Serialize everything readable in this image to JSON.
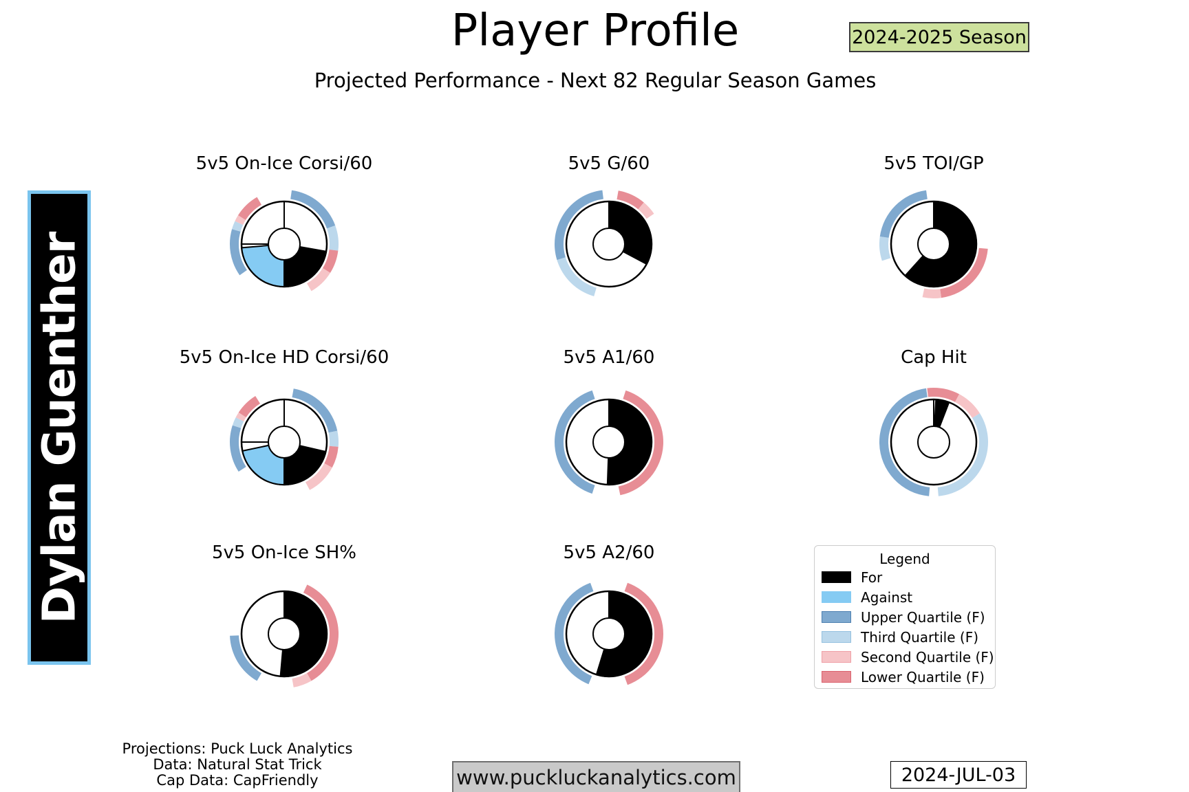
{
  "header": {
    "title": "Player Profile",
    "season_badge": "2024-2025 Season",
    "subtitle": "Projected Performance - Next 82 Regular Season Games"
  },
  "player": {
    "name": "Dylan Guenther"
  },
  "colors": {
    "for": "#000000",
    "against": "#85cbf3",
    "upper_q": "#7fa9cf",
    "upper_q_border": "#4c7fb0",
    "third_q": "#bcd8ec",
    "third_q_border": "#94c0df",
    "second_q": "#f6c4c7",
    "second_q_border": "#efa0a6",
    "lower_q": "#e78d95",
    "lower_q_border": "#da626d",
    "season_badge_bg": "#cde19d",
    "website_box_bg": "#c9c9c9",
    "name_box_border": "#7ac4ee"
  },
  "legend": {
    "title": "Legend",
    "items": [
      {
        "label": "For",
        "fill": "#000000",
        "border": "#000000"
      },
      {
        "label": "Against",
        "fill": "#85cbf3",
        "border": "#85cbf3"
      },
      {
        "label": "Upper Quartile (F)",
        "fill": "#7fa9cf",
        "border": "#4c7fb0"
      },
      {
        "label": "Third Quartile (F)",
        "fill": "#bcd8ec",
        "border": "#94c0df"
      },
      {
        "label": "Second Quartile (F)",
        "fill": "#f6c4c7",
        "border": "#efa0a6"
      },
      {
        "label": "Lower Quartile (F)",
        "fill": "#e78d95",
        "border": "#da626d"
      }
    ]
  },
  "chart_data": {
    "type": "donut-gauge-grid",
    "notes": "Eight percentile gauge donuts; angles in degrees clockwise from 12 o'clock. 'for' wedges are black, 'against' wedges light blue; outer ring arcs show quartile bands (upper/third = blues, second/lower = pinks/reds).",
    "charts": [
      {
        "title": "5v5 On-Ice Corsi/60",
        "row": 0,
        "col": 0,
        "style": "corsi",
        "wedges": [
          {
            "name": "for",
            "start": 100,
            "end": 180,
            "approx_pct": 22
          },
          {
            "name": "against",
            "start": 180,
            "end": 265,
            "approx_pct": 24
          }
        ],
        "dividers": [
          0,
          270
        ],
        "ring": [
          {
            "q": "upper",
            "start": 8,
            "end": 70
          },
          {
            "q": "third",
            "start": 70,
            "end": 97
          },
          {
            "q": "lower",
            "start": 97,
            "end": 122
          },
          {
            "q": "second",
            "start": 122,
            "end": 150
          },
          {
            "q": "upper",
            "start": 235,
            "end": 286
          },
          {
            "q": "third",
            "start": 286,
            "end": 295
          },
          {
            "q": "second",
            "start": 295,
            "end": 302
          },
          {
            "q": "lower",
            "start": 302,
            "end": 330
          }
        ]
      },
      {
        "title": "5v5 G/60",
        "row": 0,
        "col": 1,
        "style": "gauge",
        "wedges": [
          {
            "name": "for",
            "start": 0,
            "end": 118,
            "approx_pct": 33
          }
        ],
        "dividers": [
          0
        ],
        "ring": [
          {
            "q": "lower",
            "start": 10,
            "end": 40
          },
          {
            "q": "second",
            "start": 40,
            "end": 56
          },
          {
            "q": "third",
            "start": 196,
            "end": 253
          },
          {
            "q": "upper",
            "start": 253,
            "end": 353
          }
        ]
      },
      {
        "title": "5v5 TOI/GP",
        "row": 0,
        "col": 2,
        "style": "gauge",
        "wedges": [
          {
            "name": "for",
            "start": 0,
            "end": 222,
            "approx_pct": 62
          }
        ],
        "dividers": [
          0
        ],
        "ring": [
          {
            "q": "lower",
            "start": 95,
            "end": 172
          },
          {
            "q": "second",
            "start": 172,
            "end": 192
          },
          {
            "q": "third",
            "start": 252,
            "end": 278
          },
          {
            "q": "upper",
            "start": 278,
            "end": 352
          }
        ]
      },
      {
        "title": "5v5 On-Ice HD Corsi/60",
        "row": 1,
        "col": 0,
        "style": "corsi",
        "wedges": [
          {
            "name": "for",
            "start": 103,
            "end": 180,
            "approx_pct": 21
          },
          {
            "name": "against",
            "start": 180,
            "end": 258,
            "approx_pct": 22
          }
        ],
        "dividers": [
          0,
          270
        ],
        "ring": [
          {
            "q": "upper",
            "start": 10,
            "end": 78
          },
          {
            "q": "third",
            "start": 78,
            "end": 95
          },
          {
            "q": "lower",
            "start": 95,
            "end": 118
          },
          {
            "q": "second",
            "start": 118,
            "end": 152
          },
          {
            "q": "upper",
            "start": 237,
            "end": 288
          },
          {
            "q": "third",
            "start": 288,
            "end": 297
          },
          {
            "q": "second",
            "start": 297,
            "end": 303
          },
          {
            "q": "lower",
            "start": 303,
            "end": 328
          }
        ]
      },
      {
        "title": "5v5 A1/60",
        "row": 1,
        "col": 1,
        "style": "gauge",
        "wedges": [
          {
            "name": "for",
            "start": 0,
            "end": 182,
            "approx_pct": 51
          }
        ],
        "dividers": [
          0
        ],
        "ring": [
          {
            "q": "lower",
            "start": 18,
            "end": 168
          },
          {
            "q": "upper",
            "start": 198,
            "end": 342
          }
        ]
      },
      {
        "title": "Cap Hit",
        "row": 1,
        "col": 2,
        "style": "gauge",
        "wedges": [
          {
            "name": "for",
            "start": 3,
            "end": 21,
            "approx_pct": 5
          }
        ],
        "dividers": [
          0
        ],
        "ring": [
          {
            "q": "lower",
            "start": 353,
            "end": 360
          },
          {
            "q": "lower",
            "start": 0,
            "end": 28
          },
          {
            "q": "second",
            "start": 28,
            "end": 58
          },
          {
            "q": "third",
            "start": 58,
            "end": 175
          },
          {
            "q": "upper",
            "start": 185,
            "end": 352
          }
        ]
      },
      {
        "title": "5v5 On-Ice SH%",
        "row": 2,
        "col": 0,
        "style": "gauge",
        "wedges": [
          {
            "name": "for",
            "start": 0,
            "end": 185,
            "approx_pct": 51
          }
        ],
        "dividers": [
          0
        ],
        "ring": [
          {
            "q": "lower",
            "start": 25,
            "end": 150
          },
          {
            "q": "second",
            "start": 150,
            "end": 170
          },
          {
            "q": "upper",
            "start": 210,
            "end": 268
          }
        ]
      },
      {
        "title": "5v5 A2/60",
        "row": 2,
        "col": 1,
        "style": "gauge",
        "wedges": [
          {
            "name": "for",
            "start": 0,
            "end": 197,
            "approx_pct": 55
          }
        ],
        "dividers": [
          0
        ],
        "ring": [
          {
            "q": "lower",
            "start": 20,
            "end": 160
          },
          {
            "q": "upper",
            "start": 202,
            "end": 340
          }
        ]
      }
    ]
  },
  "footer": {
    "credits": [
      "Projections: Puck Luck Analytics",
      "Data: Natural Stat Trick",
      "Cap Data: CapFriendly"
    ],
    "website": "www.puckluckanalytics.com",
    "date": "2024-JUL-03"
  }
}
